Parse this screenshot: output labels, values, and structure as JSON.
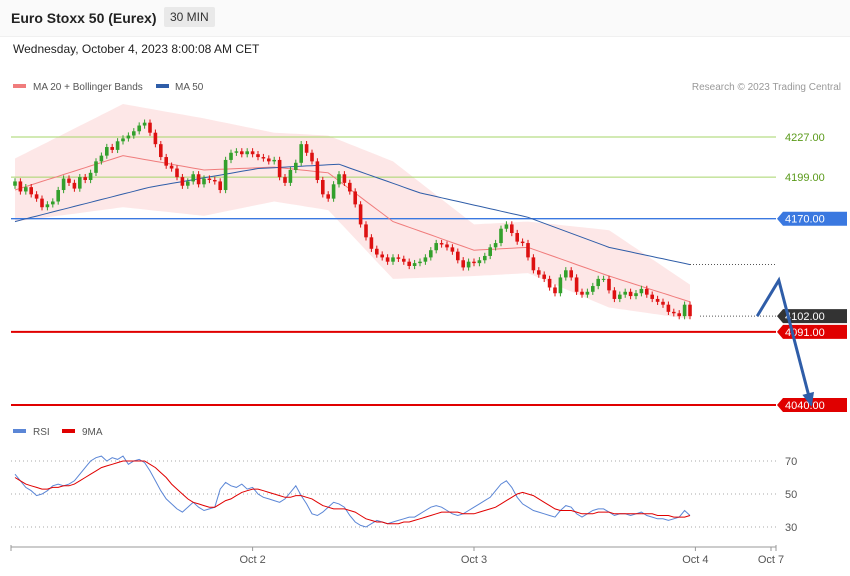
{
  "header": {
    "title": "Euro Stoxx 50 (Eurex)",
    "timeframe": "30 MIN",
    "datetime": "Wednesday, October 4, 2023 8:00:08 AM CET"
  },
  "credit": "Research © 2023 Trading Central",
  "colors": {
    "bull": "#33a02c",
    "bear": "#dd1111",
    "ma20": "#f07c7c",
    "ma50": "#2f5da8",
    "band": "#fde3e3",
    "support": "#e00000",
    "resistance_green": "#a6d56a",
    "pivot_blue": "#3a78e0",
    "arrow": "#2f5da8",
    "rsi": "#5b86d6",
    "rsi_ma": "#e00000"
  },
  "chart_data": [
    {
      "type": "candlestick",
      "legend": [
        {
          "label": "MA 20 + Bollinger Bands",
          "color": "#f07c7c"
        },
        {
          "label": "MA 50",
          "color": "#2f5da8"
        }
      ],
      "ylim": [
        4025,
        4255
      ],
      "levels": [
        {
          "value": 4227,
          "label": "4227.00",
          "style": "green-line"
        },
        {
          "value": 4199,
          "label": "4199.00",
          "style": "green-line"
        },
        {
          "value": 4170,
          "label": "4170.00",
          "style": "blue-tag"
        },
        {
          "value": 4102,
          "label": "4102.00",
          "style": "dark-tag"
        },
        {
          "value": 4091,
          "label": "4091.00",
          "style": "red-tag"
        },
        {
          "value": 4040,
          "label": "4040.00",
          "style": "red-tag"
        }
      ],
      "projection": [
        {
          "x": 138,
          "y": 4102
        },
        {
          "x": 142,
          "y": 4127
        },
        {
          "x": 148,
          "y": 4040
        }
      ],
      "x_ticks": [
        {
          "label": "Oct 2",
          "x": 44
        },
        {
          "label": "Oct 3",
          "x": 85
        },
        {
          "label": "Oct 4",
          "x": 126
        },
        {
          "label": "Oct 7",
          "x": 140
        }
      ],
      "candles_close": [
        4196,
        4189,
        4192,
        4187,
        4184,
        4178,
        4180,
        4182,
        4190,
        4198,
        4195,
        4191,
        4199,
        4197,
        4202,
        4210,
        4214,
        4220,
        4218,
        4224,
        4226,
        4228,
        4231,
        4235,
        4237,
        4230,
        4222,
        4213,
        4207,
        4205,
        4199,
        4193,
        4196,
        4201,
        4194,
        4198,
        4197,
        4196,
        4190,
        4211,
        4216,
        4217,
        4215,
        4217,
        4215,
        4213,
        4212,
        4210,
        4211,
        4199,
        4195,
        4204,
        4209,
        4222,
        4216,
        4210,
        4197,
        4187,
        4184,
        4194,
        4201,
        4195,
        4189,
        4180,
        4166,
        4157,
        4149,
        4145,
        4143,
        4140,
        4143,
        4142,
        4140,
        4137,
        4139,
        4140,
        4143,
        4148,
        4153,
        4152,
        4150,
        4147,
        4141,
        4136,
        4140,
        4139,
        4141,
        4144,
        4150,
        4153,
        4163,
        4166,
        4160,
        4154,
        4153,
        4143,
        4134,
        4131,
        4128,
        4122,
        4118,
        4129,
        4134,
        4129,
        4119,
        4117,
        4119,
        4123,
        4128,
        4128,
        4120,
        4114,
        4117,
        4119,
        4116,
        4118,
        4121,
        4117,
        4114,
        4112,
        4110,
        4105,
        4104,
        4102,
        4110,
        4102
      ],
      "bollinger": {
        "points": [
          {
            "i": 0,
            "mid": 4190,
            "upper": 4212,
            "lower": 4168
          },
          {
            "i": 20,
            "mid": 4214,
            "upper": 4250,
            "lower": 4178
          },
          {
            "i": 35,
            "mid": 4204,
            "upper": 4240,
            "lower": 4172
          },
          {
            "i": 48,
            "mid": 4206,
            "upper": 4230,
            "lower": 4182
          },
          {
            "i": 58,
            "mid": 4202,
            "upper": 4228,
            "lower": 4176
          },
          {
            "i": 70,
            "mid": 4168,
            "upper": 4210,
            "lower": 4128
          },
          {
            "i": 85,
            "mid": 4148,
            "upper": 4166,
            "lower": 4130
          },
          {
            "i": 95,
            "mid": 4150,
            "upper": 4168,
            "lower": 4132
          },
          {
            "i": 110,
            "mid": 4130,
            "upper": 4162,
            "lower": 4108
          },
          {
            "i": 125,
            "mid": 4112,
            "upper": 4124,
            "lower": 4100
          }
        ]
      },
      "ma50": [
        {
          "i": 0,
          "v": 4168
        },
        {
          "i": 25,
          "v": 4192
        },
        {
          "i": 45,
          "v": 4205
        },
        {
          "i": 60,
          "v": 4208
        },
        {
          "i": 75,
          "v": 4188
        },
        {
          "i": 95,
          "v": 4171
        },
        {
          "i": 110,
          "v": 4150
        },
        {
          "i": 125,
          "v": 4138
        }
      ]
    },
    {
      "type": "line",
      "legend": [
        {
          "label": "RSI",
          "color": "#5b86d6"
        },
        {
          "label": "9MA",
          "color": "#e00000"
        }
      ],
      "ylim": [
        20,
        80
      ],
      "ticks": [
        70,
        50,
        30
      ],
      "rsi": [
        62,
        58,
        54,
        52,
        49,
        50,
        52,
        55,
        56,
        55,
        56,
        58,
        62,
        66,
        70,
        72,
        73,
        70,
        72,
        71,
        73,
        68,
        70,
        71,
        69,
        64,
        58,
        52,
        47,
        44,
        41,
        39,
        42,
        45,
        42,
        40,
        41,
        42,
        53,
        57,
        55,
        54,
        56,
        53,
        54,
        50,
        48,
        47,
        46,
        45,
        47,
        51,
        55,
        49,
        44,
        38,
        37,
        39,
        42,
        45,
        44,
        42,
        37,
        33,
        31,
        30,
        32,
        34,
        33,
        32,
        33,
        34,
        35,
        36,
        36,
        38,
        40,
        42,
        43,
        42,
        40,
        38,
        37,
        38,
        40,
        42,
        44,
        46,
        48,
        52,
        56,
        58,
        54,
        48,
        44,
        42,
        40,
        39,
        38,
        37,
        36,
        40,
        43,
        42,
        38,
        36,
        38,
        40,
        41,
        41,
        39,
        37,
        38,
        38,
        37,
        38,
        39,
        37,
        36,
        35,
        35,
        34,
        35,
        36,
        40,
        37
      ],
      "rsi_ma": [
        60,
        58,
        56,
        55,
        54,
        53,
        53,
        54,
        54,
        55,
        55,
        56,
        58,
        60,
        62,
        64,
        66,
        67,
        68,
        69,
        70,
        70,
        70,
        70,
        70,
        68,
        66,
        63,
        60,
        56,
        53,
        50,
        47,
        45,
        44,
        43,
        42,
        42,
        44,
        46,
        47,
        49,
        51,
        52,
        53,
        53,
        52,
        51,
        50,
        49,
        48,
        48,
        49,
        49,
        48,
        47,
        45,
        43,
        42,
        41,
        41,
        41,
        40,
        39,
        37,
        35,
        34,
        33,
        33,
        32,
        32,
        32,
        33,
        33,
        34,
        35,
        36,
        37,
        38,
        39,
        39,
        39,
        39,
        38,
        38,
        38,
        39,
        40,
        41,
        42,
        44,
        46,
        48,
        50,
        51,
        50,
        49,
        47,
        45,
        43,
        41,
        40,
        40,
        40,
        39,
        38,
        38,
        38,
        39,
        39,
        39,
        38,
        38,
        38,
        38,
        38,
        38,
        38,
        38,
        37,
        37,
        37,
        36,
        36,
        36,
        37
      ]
    }
  ]
}
